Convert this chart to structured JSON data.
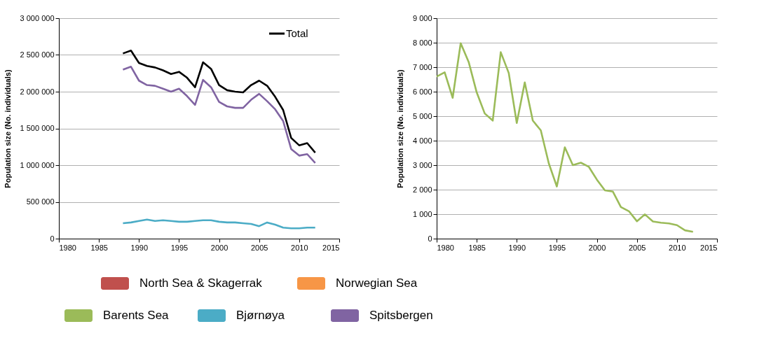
{
  "chart_data": [
    {
      "type": "line",
      "ylabel": "Population size (No. individuals)",
      "xlim": [
        1980,
        2015
      ],
      "xticks": [
        1980,
        1985,
        1990,
        1995,
        2000,
        2005,
        2010,
        2015
      ],
      "ylim": [
        0,
        3000000
      ],
      "yticks": [
        0,
        500000,
        1000000,
        1500000,
        2000000,
        2500000,
        3000000
      ],
      "grid": "y",
      "legend": "top right",
      "marker": "none",
      "line_style": "solid",
      "x": [
        1988,
        1989,
        1990,
        1991,
        1992,
        1993,
        1994,
        1995,
        1996,
        1997,
        1998,
        1999,
        2000,
        2001,
        2002,
        2003,
        2004,
        2005,
        2006,
        2007,
        2008,
        2009,
        2010,
        2011,
        2012
      ],
      "series": [
        {
          "name": "Total",
          "color": "#000000",
          "values": [
            2520000,
            2560000,
            2390000,
            2350000,
            2330000,
            2290000,
            2240000,
            2270000,
            2190000,
            2060000,
            2400000,
            2310000,
            2090000,
            2020000,
            2000000,
            1990000,
            2090000,
            2150000,
            2080000,
            1930000,
            1750000,
            1370000,
            1270000,
            1300000,
            1170000
          ]
        },
        {
          "color": "#4bacc6",
          "values": [
            210000,
            220000,
            240000,
            260000,
            240000,
            250000,
            240000,
            230000,
            230000,
            240000,
            250000,
            250000,
            230000,
            220000,
            220000,
            210000,
            200000,
            170000,
            220000,
            190000,
            150000,
            140000,
            140000,
            150000,
            150000
          ]
        },
        {
          "color": "#8064a2",
          "values": [
            2300000,
            2340000,
            2150000,
            2090000,
            2080000,
            2040000,
            2000000,
            2040000,
            1940000,
            1820000,
            2160000,
            2060000,
            1860000,
            1800000,
            1780000,
            1780000,
            1890000,
            1970000,
            1870000,
            1760000,
            1600000,
            1220000,
            1130000,
            1150000,
            1030000
          ]
        }
      ]
    },
    {
      "type": "line",
      "ylabel": "Population size (No. individuals)",
      "xlim": [
        1980,
        2015
      ],
      "xticks": [
        1980,
        1985,
        1990,
        1995,
        2000,
        2005,
        2010,
        2015
      ],
      "ylim": [
        0,
        9000
      ],
      "yticks": [
        0,
        1000,
        2000,
        3000,
        4000,
        5000,
        6000,
        7000,
        8000,
        9000
      ],
      "grid": "y",
      "marker": "none",
      "line_style": "solid",
      "x": [
        1980,
        1981,
        1982,
        1983,
        1984,
        1985,
        1986,
        1987,
        1988,
        1989,
        1990,
        1991,
        1992,
        1993,
        1994,
        1995,
        1996,
        1997,
        1998,
        1999,
        2000,
        2001,
        2002,
        2003,
        2004,
        2005,
        2006,
        2007,
        2008,
        2009,
        2010,
        2011,
        2012
      ],
      "series": [
        {
          "color": "#9bbb59",
          "values": [
            6620,
            6790,
            5750,
            7980,
            7210,
            5970,
            5110,
            4820,
            7610,
            6760,
            4720,
            6380,
            4820,
            4420,
            3070,
            2130,
            3730,
            3000,
            3100,
            2930,
            2410,
            1970,
            1920,
            1290,
            1120,
            710,
            990,
            700,
            650,
            620,
            550,
            340,
            280
          ]
        }
      ]
    },
    {
      "type": "other",
      "categories": [
        "North Sea & Skagerrak",
        "Norwegian Sea",
        "Barents Sea",
        "Bjørnøya",
        "Spitsbergen"
      ],
      "colors": [
        "#c0504d",
        "#f79646",
        "#9bbb59",
        "#4bacc6",
        "#8064a2"
      ]
    }
  ]
}
